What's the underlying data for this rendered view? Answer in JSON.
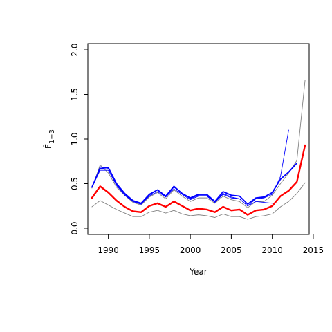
{
  "chart_data": {
    "type": "line",
    "title": "",
    "xlabel": "Year",
    "ylabel": "F̄",
    "ylabel_subscript": "1−3",
    "xlim": [
      1987.5,
      2014.5
    ],
    "ylim": [
      -0.07,
      2.07
    ],
    "x_ticks": [
      1990,
      1995,
      2000,
      2005,
      2010,
      2015
    ],
    "x_tick_labels": [
      "1990",
      "1995",
      "2000",
      "2005",
      "2010",
      "2015"
    ],
    "y_ticks": [
      0.0,
      0.5,
      1.0,
      1.5,
      2.0
    ],
    "y_tick_labels": [
      "0.0",
      "0.5",
      "1.0",
      "1.5",
      "2.0"
    ],
    "grid": false,
    "legend": "none",
    "series": [
      {
        "color": "#808080",
        "width": 0.9,
        "x": [
          1988,
          1989,
          1990,
          1991,
          1992,
          1993,
          1994,
          1995,
          1996,
          1997,
          1998,
          1999,
          2000,
          2001,
          2002,
          2003,
          2004,
          2005,
          2006,
          2007,
          2008,
          2009,
          2010,
          2011,
          2012,
          2013,
          2014
        ],
        "values": [
          0.24,
          0.31,
          0.26,
          0.21,
          0.17,
          0.13,
          0.13,
          0.18,
          0.2,
          0.17,
          0.2,
          0.16,
          0.14,
          0.15,
          0.14,
          0.12,
          0.16,
          0.13,
          0.13,
          0.1,
          0.13,
          0.14,
          0.16,
          0.24,
          0.3,
          0.39,
          0.51
        ]
      },
      {
        "color": "#808080",
        "width": 0.9,
        "x": [
          1988,
          1989,
          1990,
          1991,
          1992,
          1993,
          1994,
          1995,
          1996,
          1997,
          1998,
          1999,
          2000,
          2001,
          2002,
          2003,
          2004,
          2005,
          2006,
          2007,
          2008,
          2009,
          2010,
          2011,
          2012,
          2013,
          2014
        ],
        "values": [
          0.45,
          0.71,
          0.62,
          0.46,
          0.37,
          0.29,
          0.26,
          0.35,
          0.4,
          0.33,
          0.43,
          0.36,
          0.3,
          0.34,
          0.34,
          0.28,
          0.36,
          0.32,
          0.3,
          0.23,
          0.3,
          0.3,
          0.37,
          0.5,
          0.62,
          0.76,
          1.66
        ]
      },
      {
        "color": "#0000ff",
        "width": 0.9,
        "x": [
          1988,
          1989,
          1990,
          1991,
          1992,
          1993,
          1994,
          1995,
          1996,
          1997,
          1998,
          1999,
          2000,
          2001,
          2002,
          2003,
          2004,
          2005,
          2006,
          2007,
          2008,
          2009,
          2010,
          2011,
          2012
        ],
        "values": [
          0.46,
          0.65,
          0.65,
          0.48,
          0.37,
          0.3,
          0.27,
          0.36,
          0.41,
          0.35,
          0.44,
          0.38,
          0.32,
          0.36,
          0.36,
          0.29,
          0.38,
          0.34,
          0.33,
          0.25,
          0.33,
          0.34,
          0.38,
          0.58,
          1.1
        ]
      },
      {
        "color": "#0000ff",
        "width": 0.9,
        "x": [
          1988,
          1989,
          1990,
          1991,
          1992,
          1993,
          1994,
          1995,
          1996,
          1997,
          1998,
          1999,
          2000,
          2001,
          2002,
          2003,
          2004,
          2005,
          2006,
          2007,
          2008,
          2009,
          2010
        ],
        "values": [
          0.46,
          0.69,
          0.67,
          0.49,
          0.38,
          0.3,
          0.27,
          0.37,
          0.43,
          0.35,
          0.46,
          0.39,
          0.33,
          0.37,
          0.37,
          0.29,
          0.39,
          0.35,
          0.33,
          0.25,
          0.3,
          0.29,
          0.28
        ]
      },
      {
        "color": "#0000ff",
        "width": 1.8,
        "x": [
          1988,
          1989,
          1990,
          1991,
          1992,
          1993,
          1994,
          1995,
          1996,
          1997,
          1998,
          1999,
          2000,
          2001,
          2002,
          2003,
          2004,
          2005,
          2006,
          2007,
          2008,
          2009,
          2010,
          2011,
          2012,
          2013
        ],
        "values": [
          0.46,
          0.67,
          0.68,
          0.5,
          0.39,
          0.31,
          0.28,
          0.38,
          0.43,
          0.36,
          0.47,
          0.39,
          0.34,
          0.38,
          0.38,
          0.3,
          0.41,
          0.37,
          0.36,
          0.27,
          0.34,
          0.35,
          0.4,
          0.55,
          0.63,
          0.73
        ]
      },
      {
        "color": "#ff0000",
        "width": 2.4,
        "x": [
          1988,
          1989,
          1990,
          1991,
          1992,
          1993,
          1994,
          1995,
          1996,
          1997,
          1998,
          1999,
          2000,
          2001,
          2002,
          2003,
          2004,
          2005,
          2006,
          2007,
          2008,
          2009,
          2010,
          2011,
          2012,
          2013,
          2014
        ],
        "values": [
          0.34,
          0.47,
          0.4,
          0.31,
          0.24,
          0.19,
          0.18,
          0.25,
          0.28,
          0.24,
          0.3,
          0.25,
          0.2,
          0.22,
          0.21,
          0.18,
          0.24,
          0.2,
          0.21,
          0.15,
          0.2,
          0.21,
          0.25,
          0.36,
          0.42,
          0.52,
          0.93
        ]
      }
    ]
  }
}
